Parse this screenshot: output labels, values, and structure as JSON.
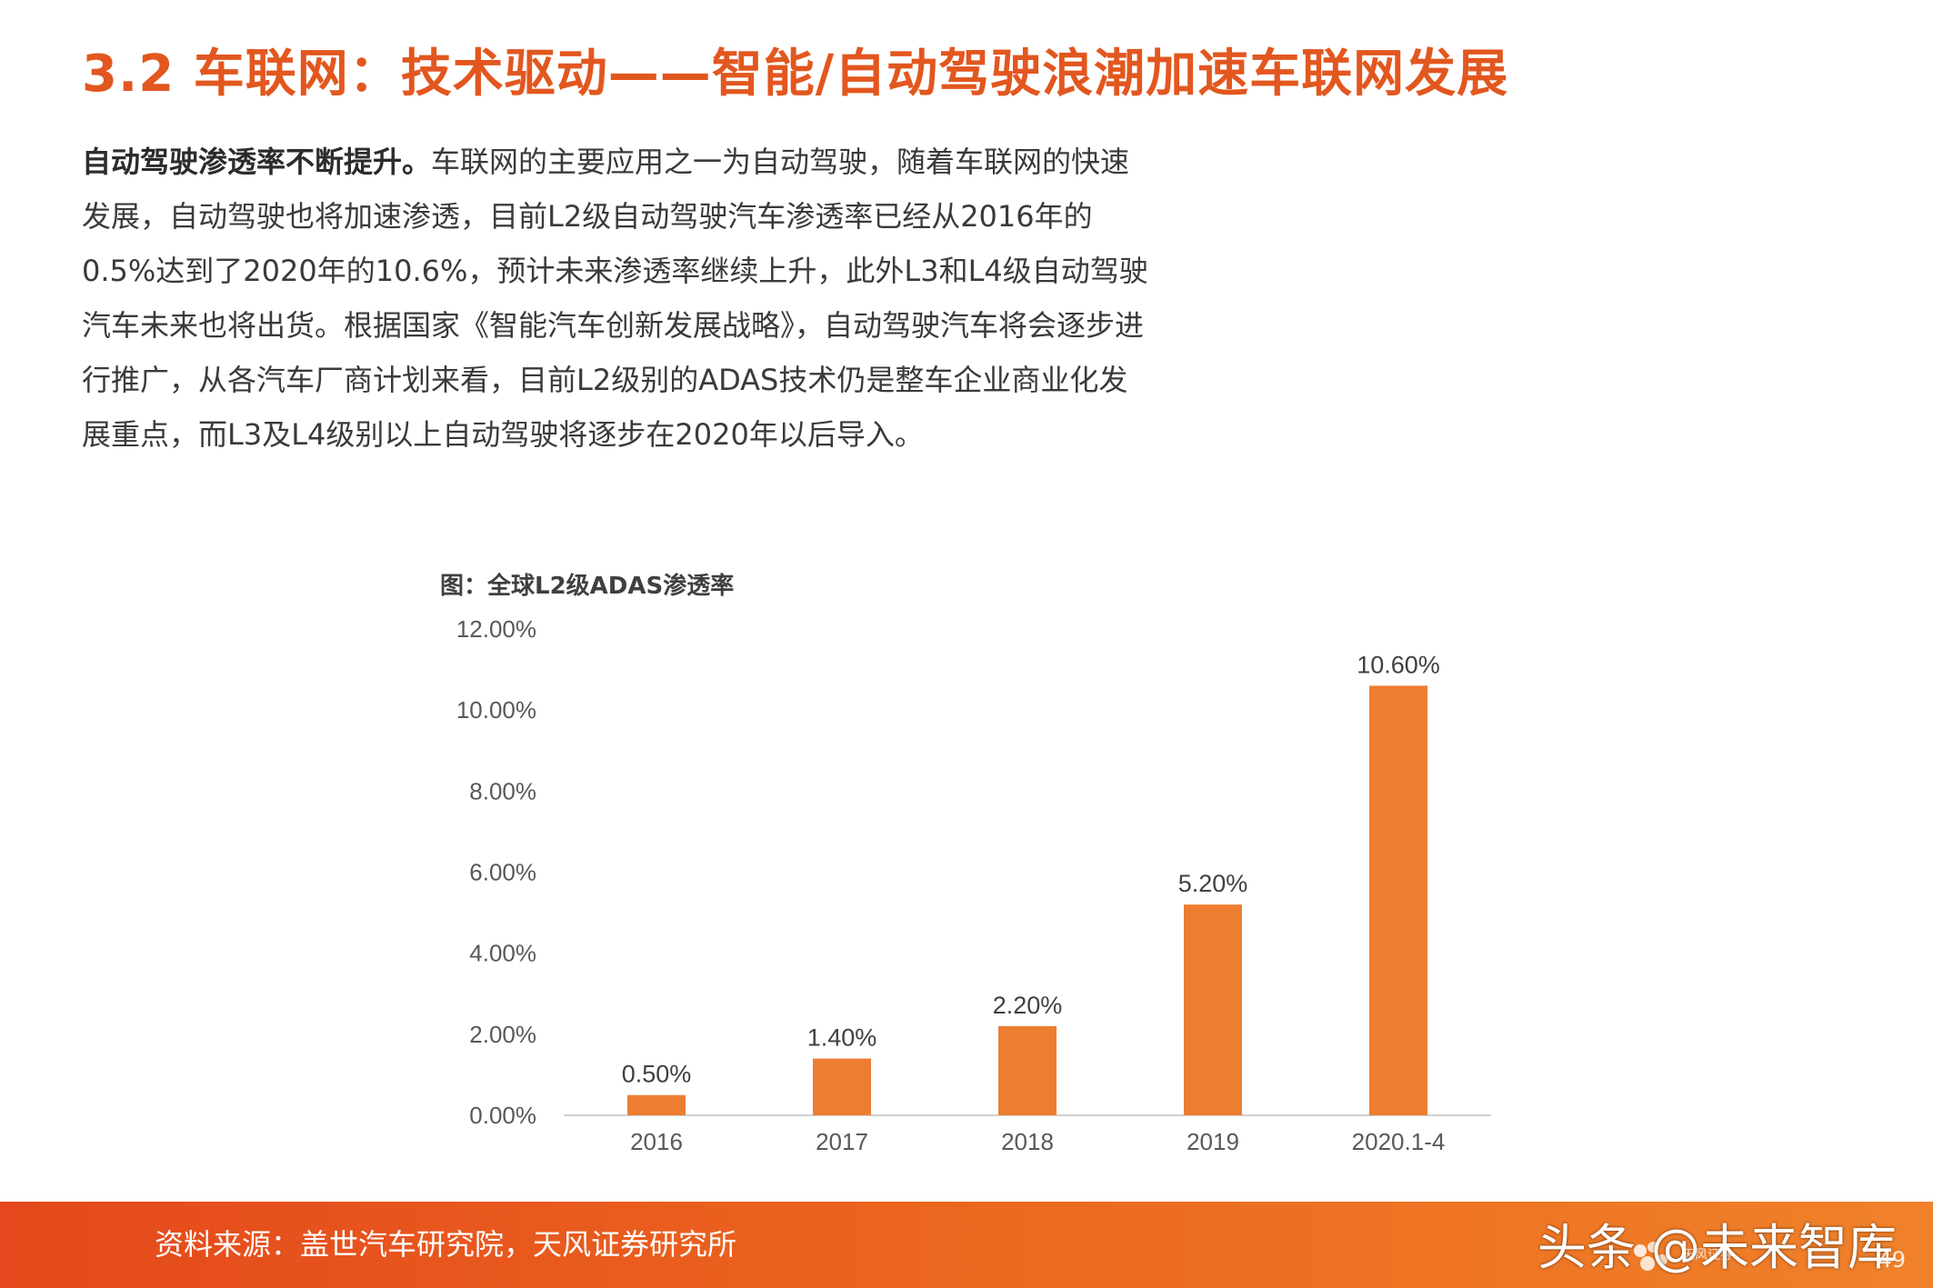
{
  "header": {
    "title": "3.2 车联网：技术驱动——智能/自动驾驶浪潮加速车联网发展"
  },
  "body": {
    "lead": "自动驾驶渗透率不断提升。",
    "text": "车联网的主要应用之一为自动驾驶，随着车联网的快速发展，自动驾驶也将加速渗透，目前L2级自动驾驶汽车渗透率已经从2016年的0.5%达到了2020年的10.6%，预计未来渗透率继续上升，此外L3和L4级自动驾驶汽车未来也将出货。根据国家《智能汽车创新发展战略》，自动驾驶汽车将会逐步进行推广，从各汽车厂商计划来看，目前L2级别的ADAS技术仍是整车企业商业化发展重点，而L3及L4级别以上自动驾驶将逐步在2020年以后导入。"
  },
  "chart_caption": "图：全球L2级ADAS渗透率",
  "chart_data": {
    "type": "bar",
    "categories": [
      "2016",
      "2017",
      "2018",
      "2019",
      "2020.1-4"
    ],
    "values": [
      0.5,
      1.4,
      2.2,
      5.2,
      10.6
    ],
    "data_labels": [
      "0.50%",
      "1.40%",
      "2.20%",
      "5.20%",
      "10.60%"
    ],
    "yticks": [
      "0.00%",
      "2.00%",
      "4.00%",
      "6.00%",
      "8.00%",
      "10.00%",
      "12.00%"
    ],
    "ylim": [
      0,
      12
    ],
    "grid": false,
    "bar_color": "#ED7D31"
  },
  "footer": {
    "source": "资料来源：盖世汽车研究院，天风证券研究所",
    "watermark": "头条 @未来智库",
    "logo_text": "天风证券",
    "page_number": "49"
  }
}
